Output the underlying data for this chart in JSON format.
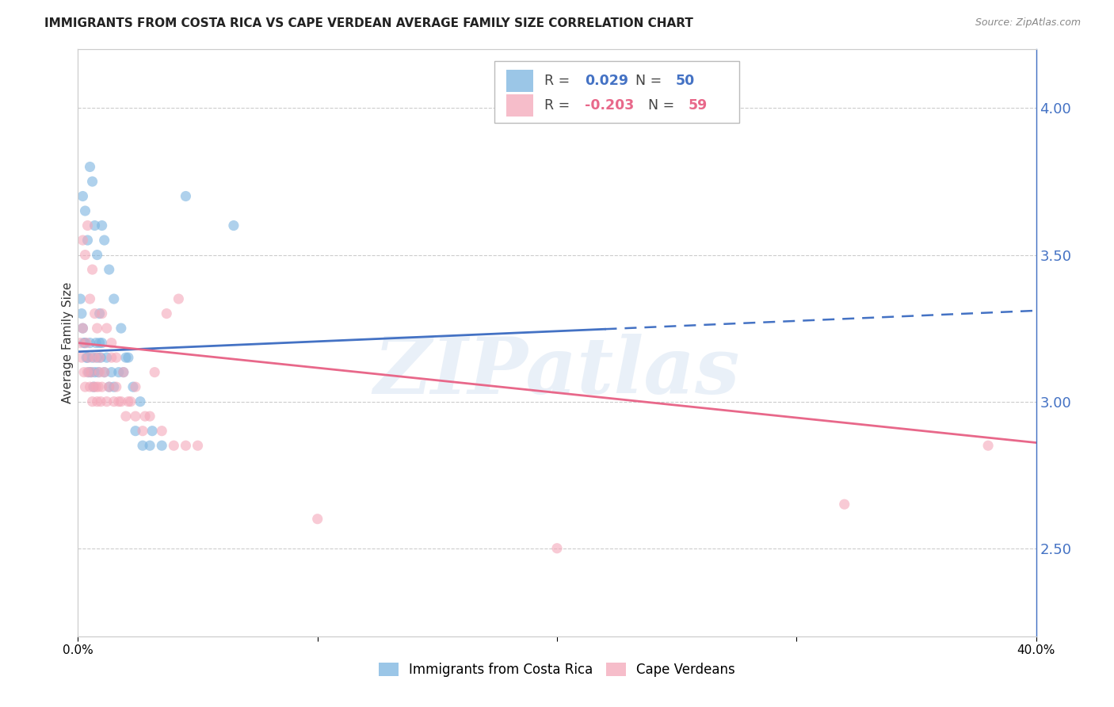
{
  "title": "IMMIGRANTS FROM COSTA RICA VS CAPE VERDEAN AVERAGE FAMILY SIZE CORRELATION CHART",
  "source": "Source: ZipAtlas.com",
  "ylabel": "Average Family Size",
  "right_yticks": [
    2.5,
    3.0,
    3.5,
    4.0
  ],
  "xmin": 0.0,
  "xmax": 40.0,
  "ymin": 2.2,
  "ymax": 4.2,
  "watermark": "ZIPatlas",
  "blue_color": "#7ab3e0",
  "pink_color": "#f4a7b9",
  "blue_line_color": "#4472c4",
  "pink_line_color": "#e8688a",
  "right_axis_color": "#4472c4",
  "scatter_alpha": 0.6,
  "scatter_size": 90,
  "costa_rica_x": [
    0.1,
    0.15,
    0.2,
    0.25,
    0.3,
    0.35,
    0.4,
    0.45,
    0.5,
    0.55,
    0.6,
    0.65,
    0.7,
    0.75,
    0.8,
    0.85,
    0.9,
    0.95,
    1.0,
    1.1,
    1.2,
    1.3,
    1.4,
    1.5,
    1.7,
    1.9,
    2.1,
    2.4,
    2.7,
    3.1,
    3.5,
    0.2,
    0.3,
    0.4,
    0.5,
    0.6,
    0.7,
    0.8,
    0.9,
    1.0,
    1.1,
    1.3,
    1.5,
    1.8,
    2.0,
    2.3,
    2.6,
    3.0,
    4.5,
    6.5
  ],
  "costa_rica_y": [
    3.35,
    3.3,
    3.25,
    3.2,
    3.2,
    3.15,
    3.15,
    3.1,
    3.2,
    3.1,
    3.15,
    3.05,
    3.1,
    3.2,
    3.15,
    3.1,
    3.2,
    3.15,
    3.2,
    3.1,
    3.15,
    3.05,
    3.1,
    3.05,
    3.1,
    3.1,
    3.15,
    2.9,
    2.85,
    2.9,
    2.85,
    3.7,
    3.65,
    3.55,
    3.8,
    3.75,
    3.6,
    3.5,
    3.3,
    3.6,
    3.55,
    3.45,
    3.35,
    3.25,
    3.15,
    3.05,
    3.0,
    2.85,
    3.7,
    3.6
  ],
  "cape_verde_x": [
    0.1,
    0.15,
    0.2,
    0.25,
    0.3,
    0.35,
    0.4,
    0.45,
    0.5,
    0.55,
    0.6,
    0.65,
    0.7,
    0.75,
    0.8,
    0.85,
    0.9,
    0.95,
    1.0,
    1.1,
    1.2,
    1.3,
    1.4,
    1.5,
    1.6,
    1.7,
    1.8,
    2.0,
    2.2,
    2.4,
    2.7,
    3.0,
    3.5,
    4.0,
    4.5,
    5.0,
    0.2,
    0.3,
    0.4,
    0.5,
    0.6,
    0.7,
    0.8,
    0.9,
    1.0,
    1.2,
    1.4,
    1.6,
    1.9,
    2.1,
    2.4,
    2.8,
    3.2,
    3.7,
    4.2,
    10.0,
    20.0,
    32.0,
    38.0
  ],
  "cape_verde_y": [
    3.2,
    3.15,
    3.25,
    3.1,
    3.05,
    3.2,
    3.1,
    3.15,
    3.05,
    3.1,
    3.0,
    3.05,
    3.15,
    3.05,
    3.0,
    3.05,
    3.1,
    3.0,
    3.05,
    3.1,
    3.0,
    3.05,
    3.15,
    3.0,
    3.05,
    3.0,
    3.0,
    2.95,
    3.0,
    2.95,
    2.9,
    2.95,
    2.9,
    2.85,
    2.85,
    2.85,
    3.55,
    3.5,
    3.6,
    3.35,
    3.45,
    3.3,
    3.25,
    3.15,
    3.3,
    3.25,
    3.2,
    3.15,
    3.1,
    3.0,
    3.05,
    2.95,
    3.1,
    3.3,
    3.35,
    2.6,
    2.5,
    2.65,
    2.85
  ],
  "blue_reg_y0": 3.17,
  "blue_reg_y1": 3.31,
  "blue_solid_xmax": 22.0,
  "pink_reg_y0": 3.2,
  "pink_reg_y1": 2.86,
  "grid_color": "#cccccc",
  "background_color": "#ffffff",
  "title_fontsize": 11,
  "source_fontsize": 9,
  "axis_label_fontsize": 11,
  "tick_fontsize": 11
}
